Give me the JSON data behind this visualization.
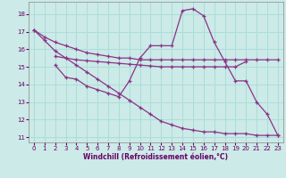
{
  "background_color": "#cceae7",
  "grid_color": "#aaddda",
  "line_color": "#883388",
  "xlabel": "Windchill (Refroidissement éolien,°C)",
  "xlabel_color": "#660066",
  "tick_color": "#660066",
  "xlim": [
    -0.5,
    23.5
  ],
  "ylim": [
    10.7,
    18.7
  ],
  "yticks": [
    11,
    12,
    13,
    14,
    15,
    16,
    17,
    18
  ],
  "xticks": [
    0,
    1,
    2,
    3,
    4,
    5,
    6,
    7,
    8,
    9,
    10,
    11,
    12,
    13,
    14,
    15,
    16,
    17,
    18,
    19,
    20,
    21,
    22,
    23
  ],
  "series": [
    {
      "x": [
        0,
        1,
        2,
        3,
        4,
        5,
        6,
        7,
        8,
        9,
        10,
        11,
        12,
        13,
        14,
        15,
        16,
        17,
        18,
        19,
        20,
        21,
        22,
        23
      ],
      "y": [
        17.1,
        16.7,
        16.4,
        16.2,
        16.0,
        15.8,
        15.7,
        15.6,
        15.5,
        15.5,
        15.4,
        15.4,
        15.4,
        15.4,
        15.4,
        15.4,
        15.4,
        15.4,
        15.4,
        15.4,
        15.4,
        15.4,
        15.4,
        15.4
      ]
    },
    {
      "x": [
        2,
        3,
        4,
        5,
        6,
        7,
        8,
        9,
        10,
        11,
        12,
        13,
        14,
        15,
        16,
        17,
        18,
        19,
        20
      ],
      "y": [
        15.6,
        15.5,
        15.4,
        15.35,
        15.3,
        15.25,
        15.2,
        15.15,
        15.1,
        15.05,
        15.0,
        15.0,
        15.0,
        15.0,
        15.0,
        15.0,
        15.0,
        15.0,
        15.3
      ]
    },
    {
      "x": [
        2,
        3,
        4,
        5,
        6,
        7,
        8,
        9,
        10,
        11,
        12,
        13,
        14,
        15,
        16,
        17,
        18,
        19,
        20,
        21,
        22,
        23
      ],
      "y": [
        15.1,
        14.4,
        14.3,
        13.9,
        13.7,
        13.5,
        13.3,
        14.2,
        15.5,
        16.2,
        16.2,
        16.2,
        18.2,
        18.3,
        17.9,
        16.4,
        15.3,
        14.2,
        14.2,
        13.0,
        12.3,
        11.1
      ]
    },
    {
      "x": [
        0,
        1,
        2,
        3,
        4,
        5,
        6,
        7,
        8,
        9,
        10,
        11,
        12,
        13,
        14,
        15,
        16,
        17,
        18,
        19,
        20,
        21,
        22,
        23
      ],
      "y": [
        17.1,
        16.5,
        15.9,
        15.5,
        15.1,
        14.7,
        14.3,
        13.9,
        13.5,
        13.1,
        12.7,
        12.3,
        11.9,
        11.7,
        11.5,
        11.4,
        11.3,
        11.3,
        11.2,
        11.2,
        11.2,
        11.1,
        11.1,
        11.1
      ]
    }
  ]
}
